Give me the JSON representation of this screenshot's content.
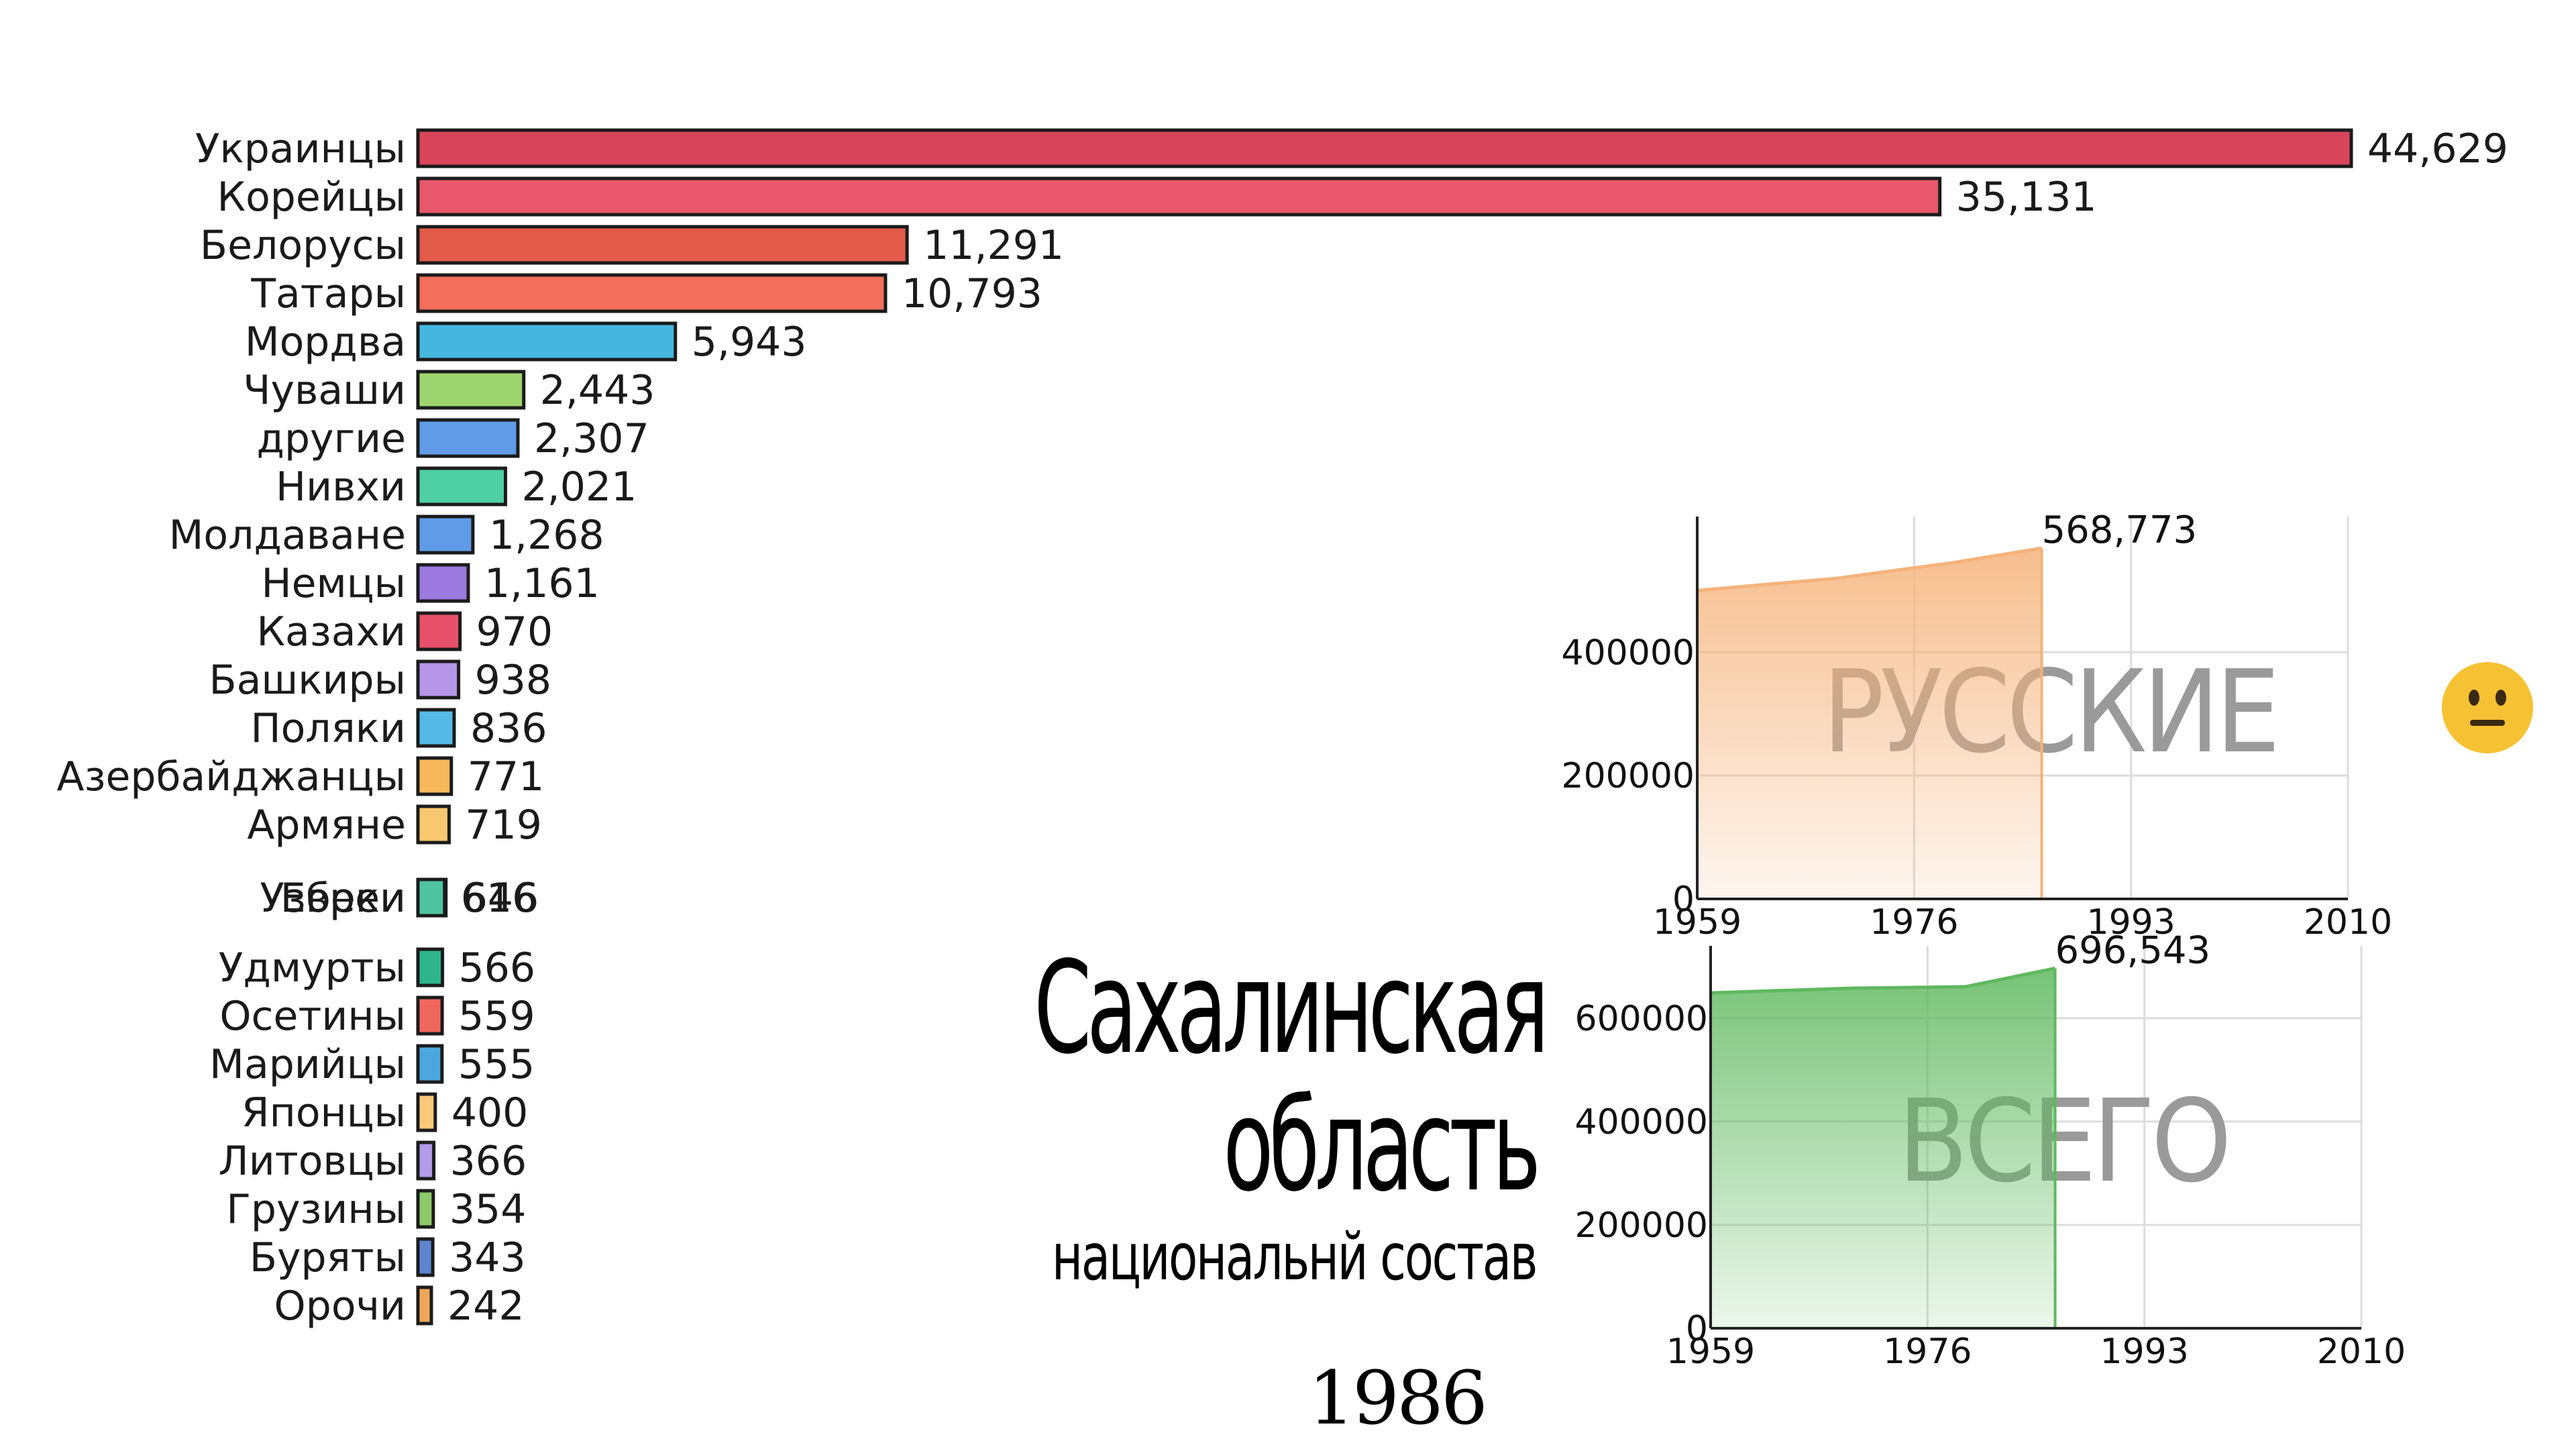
{
  "chart_data": [
    {
      "type": "bar",
      "orientation": "horizontal",
      "categories": [
        "Украинцы",
        "Корейцы",
        "Белорусы",
        "Татары",
        "Мордва",
        "Чуваши",
        "другие",
        "Нивхи",
        "Молдаване",
        "Немцы",
        "Казахи",
        "Башкиры",
        "Поляки",
        "Азербайджанцы",
        "Армяне",
        "Евреи",
        "Узбеки",
        "Удмурты",
        "Осетины",
        "Марийцы",
        "Японцы",
        "Литовцы",
        "Грузины",
        "Буряты",
        "Орочи"
      ],
      "values": [
        44629,
        35131,
        11291,
        10793,
        5943,
        2443,
        2307,
        2021,
        1268,
        1161,
        970,
        938,
        836,
        771,
        719,
        646,
        616,
        566,
        559,
        555,
        400,
        366,
        354,
        343,
        242
      ],
      "value_labels": [
        "44,629",
        "35,131",
        "11,291",
        "10,793",
        "5,943",
        "2,443",
        "2,307",
        "2,021",
        "1,268",
        "1,161",
        "970",
        "938",
        "836",
        "771",
        "719",
        "646",
        "616",
        "566",
        "559",
        "555",
        "400",
        "366",
        "354",
        "343",
        "242"
      ],
      "colors": [
        "#d8455a",
        "#e8576b",
        "#e15a4a",
        "#f46f5b",
        "#45b7df",
        "#9ed46d",
        "#5f9be6",
        "#4fcfa4",
        "#5f9be6",
        "#9b79de",
        "#e8506a",
        "#b596e8",
        "#55b9e6",
        "#f6b85a",
        "#f8c870",
        "#3ec7a6",
        "#4ec4a0",
        "#2fb58a",
        "#f0675e",
        "#4ba7dd",
        "#f9c97a",
        "#b29be8",
        "#8cc96a",
        "#5d85d0",
        "#f0a65a"
      ],
      "xlim": [
        0,
        44629
      ]
    },
    {
      "type": "area",
      "watermark": "РУССКИЕ",
      "x": [
        1959,
        1970,
        1979,
        1986
      ],
      "y": [
        500000,
        520000,
        545000,
        568773
      ],
      "end_label": "568,773",
      "x_ticks": [
        "1959",
        "1976",
        "1993",
        "2010"
      ],
      "y_ticks": [
        "0",
        "200000",
        "400000"
      ],
      "xlim": [
        1959,
        2010
      ],
      "ylim": [
        0,
        620000
      ],
      "grid": true,
      "color": "#f5b27a"
    },
    {
      "type": "area",
      "watermark": "ВСЕГО",
      "x": [
        1959,
        1970,
        1979,
        1986
      ],
      "y": [
        649000,
        658000,
        661000,
        696543
      ],
      "end_label": "696,543",
      "x_ticks": [
        "1959",
        "1976",
        "1993",
        "2010"
      ],
      "y_ticks": [
        "0",
        "200000",
        "400000",
        "600000"
      ],
      "xlim": [
        1959,
        2010
      ],
      "ylim": [
        0,
        740000
      ],
      "grid": true,
      "color": "#5fb85f"
    }
  ],
  "title": {
    "line1": "Сахалинская",
    "line2": "область",
    "subtitle": "национальнй состав"
  },
  "year": "1986",
  "emoji": {
    "icon": "neutral-face-icon",
    "color": "#f6c233"
  }
}
